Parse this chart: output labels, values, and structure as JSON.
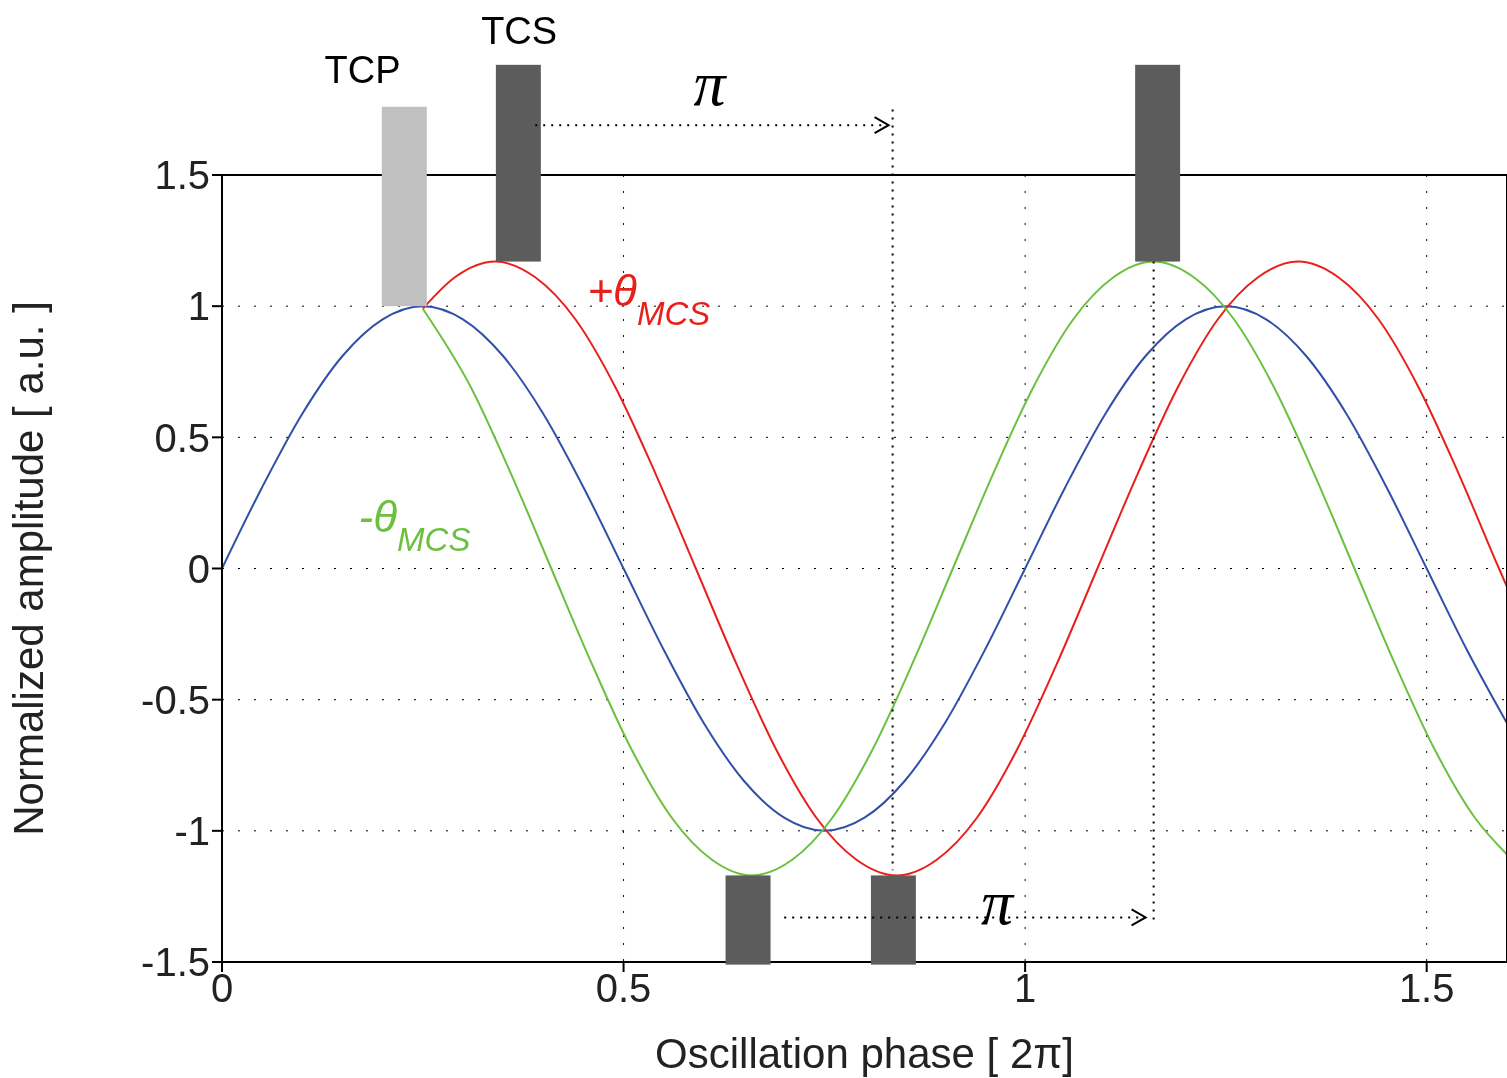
{
  "chart_data": {
    "type": "line",
    "xlabel": "Oscillation phase [ 2π]",
    "ylabel": "Normalized amplitude [ a.u. ]",
    "xlim": [
      0,
      1.6
    ],
    "ylim": [
      -1.5,
      1.5
    ],
    "xticks": [
      0,
      0.5,
      1,
      1.5
    ],
    "yticks": [
      -1.5,
      -1,
      -0.5,
      0,
      0.5,
      1,
      1.5
    ],
    "grid": true,
    "series": [
      {
        "color": "#3050a8",
        "x": [
          0,
          0.05,
          0.1,
          0.15,
          0.2,
          0.25,
          0.3,
          0.35,
          0.4,
          0.45,
          0.5,
          0.55,
          0.6,
          0.65,
          0.7,
          0.75,
          0.8,
          0.85,
          0.9,
          0.95,
          1,
          1.05,
          1.1,
          1.15,
          1.2,
          1.25,
          1.3,
          1.35,
          1.4,
          1.45,
          1.5,
          1.55,
          1.6
        ],
        "values": [
          0,
          0.31,
          0.59,
          0.81,
          0.95,
          1,
          0.95,
          0.81,
          0.59,
          0.31,
          0,
          -0.31,
          -0.59,
          -0.81,
          -0.95,
          -1,
          -0.95,
          -0.81,
          -0.59,
          -0.31,
          0,
          0.31,
          0.59,
          0.81,
          0.95,
          1,
          0.95,
          0.81,
          0.59,
          0.31,
          0,
          -0.31,
          -0.59
        ]
      },
      {
        "name": "+θ$_{MCS}$",
        "color": "#e8201c",
        "x": [
          0.25,
          0.29,
          0.34,
          0.39,
          0.44,
          0.49,
          0.54,
          0.59,
          0.64,
          0.69,
          0.74,
          0.79,
          0.84,
          0.89,
          0.94,
          0.99,
          1.04,
          1.09,
          1.14,
          1.19,
          1.24,
          1.29,
          1.34,
          1.39,
          1.44,
          1.49,
          1.54,
          1.59,
          1.6
        ],
        "values": [
          0.99,
          1.11,
          1.17,
          1.11,
          0.95,
          0.69,
          0.36,
          0,
          -0.36,
          -0.69,
          -0.95,
          -1.11,
          -1.17,
          -1.11,
          -0.95,
          -0.69,
          -0.36,
          0,
          0.36,
          0.69,
          0.95,
          1.11,
          1.17,
          1.11,
          0.95,
          0.69,
          0.36,
          0,
          -0.07
        ]
      },
      {
        "name": "-θ$_{MCS}$",
        "color": "#6cc040",
        "x": [
          0.25,
          0.31,
          0.36,
          0.41,
          0.46,
          0.51,
          0.56,
          0.61,
          0.66,
          0.71,
          0.76,
          0.81,
          0.86,
          0.91,
          0.96,
          1.01,
          1.06,
          1.11,
          1.16,
          1.21,
          1.26,
          1.31,
          1.36,
          1.41,
          1.46,
          1.51,
          1.56,
          1.6
        ],
        "values": [
          0.99,
          0.69,
          0.36,
          0,
          -0.36,
          -0.69,
          -0.95,
          -1.11,
          -1.17,
          -1.11,
          -0.95,
          -0.69,
          -0.36,
          0,
          0.36,
          0.69,
          0.95,
          1.11,
          1.17,
          1.11,
          0.95,
          0.69,
          0.36,
          0,
          -0.36,
          -0.69,
          -0.95,
          -1.09
        ]
      }
    ],
    "ref_lines": [
      {
        "axis": "x",
        "value": 0.835,
        "line_style": "dotted"
      },
      {
        "axis": "x",
        "value": 1.16,
        "line_style": "dotted"
      }
    ],
    "annotations": [
      "TCP",
      "TCS",
      "π",
      "π"
    ]
  }
}
